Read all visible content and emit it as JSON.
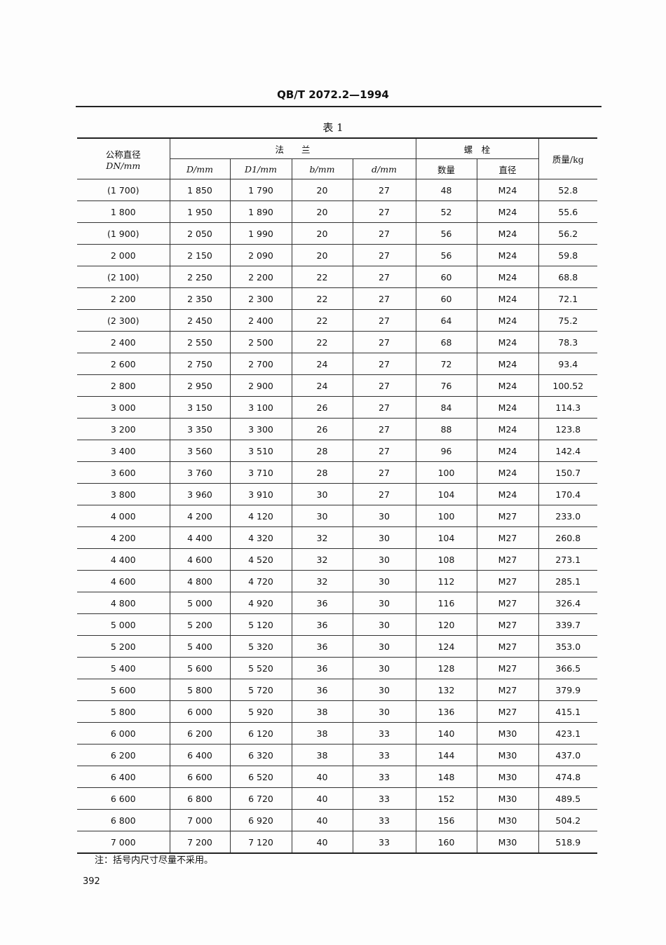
{
  "header": {
    "standard": "QB/T 2072.2—1994"
  },
  "table": {
    "caption": "表 1",
    "headers": {
      "nominal": "公称直径",
      "nominal_unit": "DN/mm",
      "flange": "法　　兰",
      "bolt": "螺　栓",
      "mass": "质量/kg",
      "D": "D/mm",
      "D1": "D1/mm",
      "b": "b/mm",
      "d": "d/mm",
      "count": "数量",
      "dia": "直径"
    },
    "rows": [
      [
        "(1 700)",
        "1 850",
        "1 790",
        "20",
        "27",
        "48",
        "M24",
        "52.8"
      ],
      [
        "1 800",
        "1 950",
        "1 890",
        "20",
        "27",
        "52",
        "M24",
        "55.6"
      ],
      [
        "(1 900)",
        "2 050",
        "1 990",
        "20",
        "27",
        "56",
        "M24",
        "56.2"
      ],
      [
        "2 000",
        "2 150",
        "2 090",
        "20",
        "27",
        "56",
        "M24",
        "59.8"
      ],
      [
        "(2 100)",
        "2 250",
        "2 200",
        "22",
        "27",
        "60",
        "M24",
        "68.8"
      ],
      [
        "2 200",
        "2 350",
        "2 300",
        "22",
        "27",
        "60",
        "M24",
        "72.1"
      ],
      [
        "(2 300)",
        "2 450",
        "2 400",
        "22",
        "27",
        "64",
        "M24",
        "75.2"
      ],
      [
        "2 400",
        "2 550",
        "2 500",
        "22",
        "27",
        "68",
        "M24",
        "78.3"
      ],
      [
        "2 600",
        "2 750",
        "2 700",
        "24",
        "27",
        "72",
        "M24",
        "93.4"
      ],
      [
        "2 800",
        "2 950",
        "2 900",
        "24",
        "27",
        "76",
        "M24",
        "100.52"
      ],
      [
        "3 000",
        "3 150",
        "3 100",
        "26",
        "27",
        "84",
        "M24",
        "114.3"
      ],
      [
        "3 200",
        "3 350",
        "3 300",
        "26",
        "27",
        "88",
        "M24",
        "123.8"
      ],
      [
        "3 400",
        "3 560",
        "3 510",
        "28",
        "27",
        "96",
        "M24",
        "142.4"
      ],
      [
        "3 600",
        "3 760",
        "3 710",
        "28",
        "27",
        "100",
        "M24",
        "150.7"
      ],
      [
        "3 800",
        "3 960",
        "3 910",
        "30",
        "27",
        "104",
        "M24",
        "170.4"
      ],
      [
        "4 000",
        "4 200",
        "4 120",
        "30",
        "30",
        "100",
        "M27",
        "233.0"
      ],
      [
        "4 200",
        "4 400",
        "4 320",
        "32",
        "30",
        "104",
        "M27",
        "260.8"
      ],
      [
        "4 400",
        "4 600",
        "4 520",
        "32",
        "30",
        "108",
        "M27",
        "273.1"
      ],
      [
        "4 600",
        "4 800",
        "4 720",
        "32",
        "30",
        "112",
        "M27",
        "285.1"
      ],
      [
        "4 800",
        "5 000",
        "4 920",
        "36",
        "30",
        "116",
        "M27",
        "326.4"
      ],
      [
        "5 000",
        "5 200",
        "5 120",
        "36",
        "30",
        "120",
        "M27",
        "339.7"
      ],
      [
        "5 200",
        "5 400",
        "5 320",
        "36",
        "30",
        "124",
        "M27",
        "353.0"
      ],
      [
        "5 400",
        "5 600",
        "5 520",
        "36",
        "30",
        "128",
        "M27",
        "366.5"
      ],
      [
        "5 600",
        "5 800",
        "5 720",
        "36",
        "30",
        "132",
        "M27",
        "379.9"
      ],
      [
        "5 800",
        "6 000",
        "5 920",
        "38",
        "30",
        "136",
        "M27",
        "415.1"
      ],
      [
        "6 000",
        "6 200",
        "6 120",
        "38",
        "33",
        "140",
        "M30",
        "423.1"
      ],
      [
        "6 200",
        "6 400",
        "6 320",
        "38",
        "33",
        "144",
        "M30",
        "437.0"
      ],
      [
        "6 400",
        "6 600",
        "6 520",
        "40",
        "33",
        "148",
        "M30",
        "474.8"
      ],
      [
        "6 600",
        "6 800",
        "6 720",
        "40",
        "33",
        "152",
        "M30",
        "489.5"
      ],
      [
        "6 800",
        "7 000",
        "6 920",
        "40",
        "33",
        "156",
        "M30",
        "504.2"
      ],
      [
        "7 000",
        "7 200",
        "7 120",
        "40",
        "33",
        "160",
        "M30",
        "518.9"
      ]
    ]
  },
  "note": "注：括号内尺寸尽量不采用。",
  "page_number": "392"
}
